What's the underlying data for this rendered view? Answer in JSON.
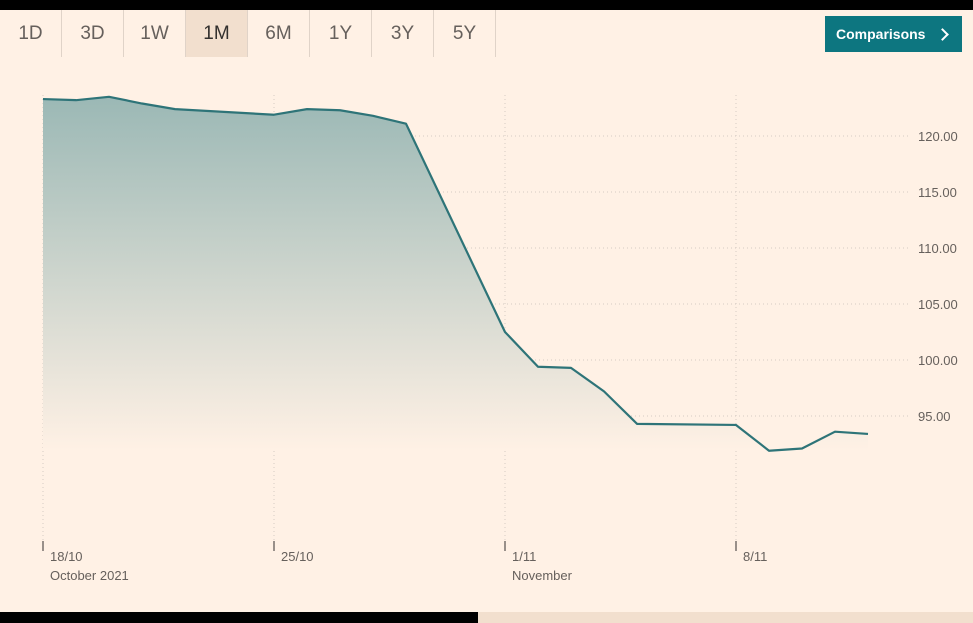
{
  "range_tabs": [
    {
      "label": "1D",
      "active": false
    },
    {
      "label": "3D",
      "active": false
    },
    {
      "label": "1W",
      "active": false
    },
    {
      "label": "1M",
      "active": true
    },
    {
      "label": "6M",
      "active": false
    },
    {
      "label": "1Y",
      "active": false
    },
    {
      "label": "3Y",
      "active": false
    },
    {
      "label": "5Y",
      "active": false
    }
  ],
  "comparisons_label": "Comparisons",
  "colors": {
    "background": "#fff1e5",
    "line": "#2e7478",
    "area_top": "#9bb8b5",
    "accent_button": "#0d7680",
    "grid": "#d5cbc3",
    "axis_text": "#66605c"
  },
  "chart_data": {
    "type": "area",
    "title": "",
    "xlabel": "",
    "ylabel": "",
    "x": [
      "2021-10-18",
      "2021-10-19",
      "2021-10-20",
      "2021-10-21",
      "2021-10-22",
      "2021-10-25",
      "2021-10-26",
      "2021-10-27",
      "2021-10-28",
      "2021-10-29",
      "2021-11-01",
      "2021-11-02",
      "2021-11-03",
      "2021-11-04",
      "2021-11-05",
      "2021-11-08",
      "2021-11-09",
      "2021-11-10",
      "2021-11-11",
      "2021-11-12"
    ],
    "series": [
      {
        "values": [
          123.3,
          123.2,
          123.5,
          122.9,
          122.4,
          121.9,
          122.4,
          122.3,
          121.8,
          121.1,
          102.5,
          99.4,
          99.3,
          97.2,
          94.3,
          94.2,
          91.9,
          92.1,
          93.6,
          93.4
        ]
      }
    ],
    "ylim": [
      87.5,
      126.5
    ],
    "y_ticks": [
      95,
      100,
      105,
      110,
      115,
      120
    ],
    "y_tick_labels": [
      "95.00",
      "100.00",
      "105.00",
      "110.00",
      "115.00",
      "120.00"
    ],
    "y_axis_position": "right",
    "x_ticks": [
      {
        "date": "2021-10-18",
        "label": "18/10",
        "sublabel": "October 2021"
      },
      {
        "date": "2021-10-25",
        "label": "25/10",
        "sublabel": ""
      },
      {
        "date": "2021-11-01",
        "label": "1/11",
        "sublabel": "November"
      },
      {
        "date": "2021-11-08",
        "label": "8/11",
        "sublabel": ""
      }
    ],
    "grid": true,
    "legend": "none"
  }
}
